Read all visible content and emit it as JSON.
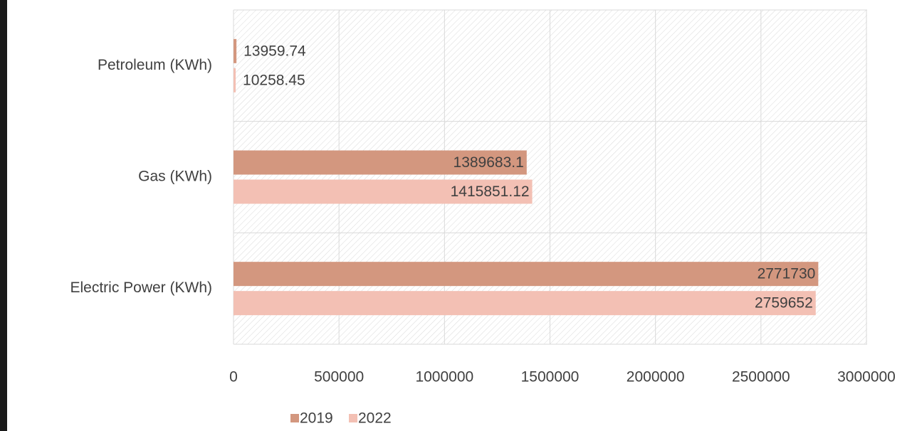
{
  "chart_data": {
    "type": "bar",
    "orientation": "horizontal",
    "categories": [
      "Petroleum (KWh)",
      "Gas (KWh)",
      "Electric Power (KWh)"
    ],
    "series": [
      {
        "name": "2019",
        "color": "#d3977f",
        "values": [
          13959.74,
          1389683.1,
          2771730
        ]
      },
      {
        "name": "2022",
        "color": "#f3c0b4",
        "values": [
          10258.45,
          1415851.12,
          2759652
        ]
      }
    ],
    "xlim": [
      0,
      3000000
    ],
    "xticks": [
      0,
      500000,
      1000000,
      1500000,
      2000000,
      2500000,
      3000000
    ],
    "grid": true,
    "legend": "bottom"
  }
}
